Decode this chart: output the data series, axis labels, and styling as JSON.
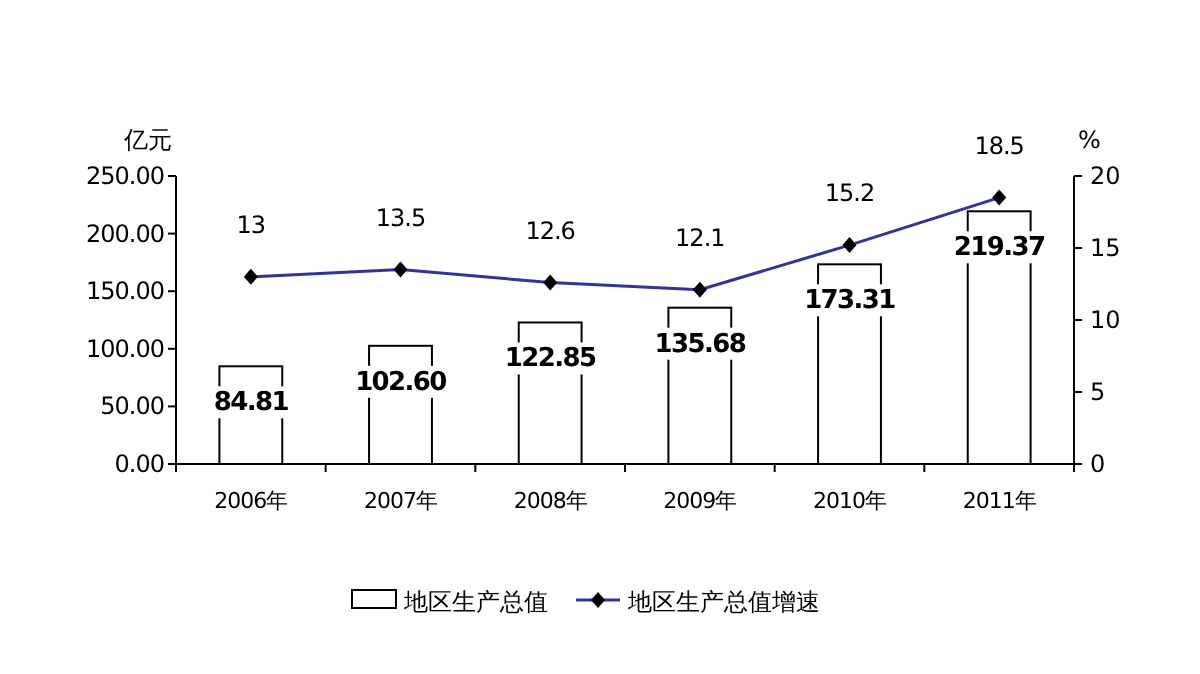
{
  "chart_data": {
    "type": "bar",
    "ylabel": "亿元",
    "y2label": "%",
    "categories": [
      "2006年",
      "2007年",
      "2008年",
      "2009年",
      "2010年",
      "2011年"
    ],
    "series": [
      {
        "name": "地区生产总值",
        "color": "#ffffff",
        "values": [
          84.81,
          102.6,
          122.85,
          135.68,
          173.31,
          219.37
        ],
        "value_labels": [
          "84.81",
          "102.60",
          "122.85",
          "135.68",
          "173.31",
          "219.37"
        ]
      },
      {
        "name": "地区生产总值增速",
        "type": "line",
        "axis": "y2",
        "color": "#333399",
        "marker": "diamond",
        "values": [
          13,
          13.5,
          12.6,
          12.1,
          15.2,
          18.5
        ],
        "value_labels": [
          "13",
          "13.5",
          "12.6",
          "12.1",
          "15.2",
          "18.5"
        ]
      }
    ],
    "ylim": [
      0,
      250
    ],
    "yticks": [
      {
        "value": 0,
        "label": "0.00"
      },
      {
        "value": 50,
        "label": "50.00"
      },
      {
        "value": 100,
        "label": "100.00"
      },
      {
        "value": 150,
        "label": "150.00"
      },
      {
        "value": 200,
        "label": "200.00"
      },
      {
        "value": 250,
        "label": "250.00"
      }
    ],
    "y2lim": [
      0,
      20
    ],
    "y2ticks": [
      0,
      5,
      10,
      15,
      20
    ],
    "legend": "bottom"
  }
}
